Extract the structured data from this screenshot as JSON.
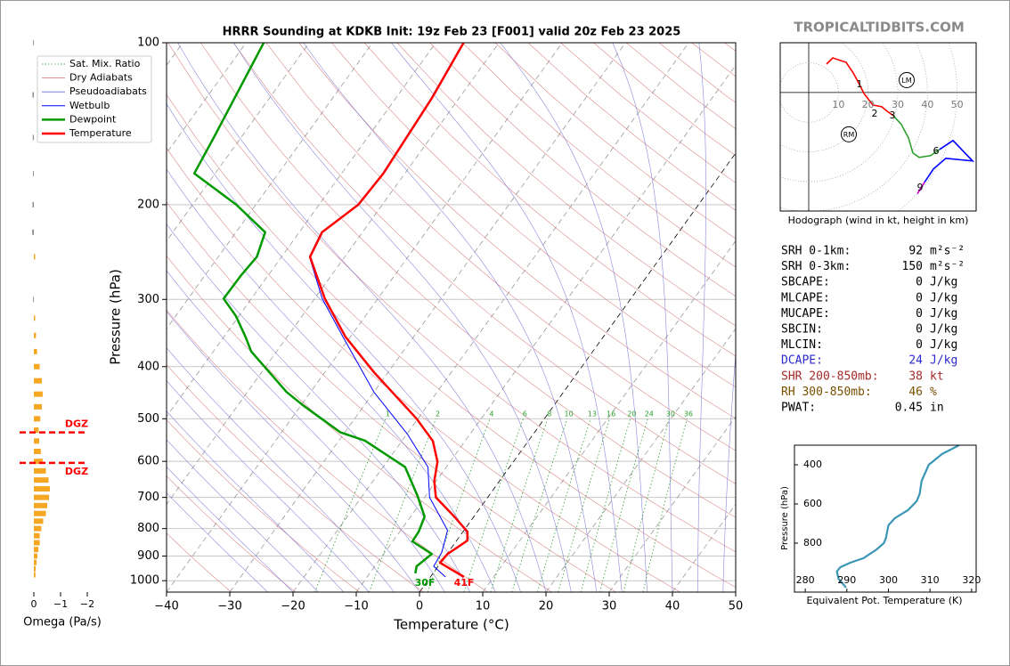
{
  "watermark": "TROPICALTIDBITS.COM",
  "chart_data": [
    {
      "type": "skewt",
      "title": "HRRR Sounding at KDKB Init: 19z Feb 23 [F001] valid 20z Feb 23 2025",
      "xlabel": "Temperature (°C)",
      "ylabel": "Pressure (hPa)",
      "xlim": [
        -40,
        50
      ],
      "ylim": [
        1050,
        100
      ],
      "log_y": true,
      "grid": true,
      "legend": "upper left",
      "xticks": [
        {
          "value": -40,
          "label": "−40"
        },
        {
          "value": -30,
          "label": "−30"
        },
        {
          "value": -20,
          "label": "−20"
        },
        {
          "value": -10,
          "label": "−10"
        },
        0,
        10,
        20,
        30,
        40,
        50
      ],
      "yticks": [
        100,
        200,
        300,
        400,
        500,
        600,
        700,
        800,
        900,
        1000
      ],
      "reference_lines": [
        {
          "name": "Sat. Mix. Ratio",
          "color": "#2ca02c",
          "values": [
            1,
            2,
            4,
            6,
            8,
            10,
            13,
            16,
            20,
            24,
            30,
            36
          ]
        },
        {
          "name": "Dry Adiabats",
          "color": "#d46a6a"
        },
        {
          "name": "Pseudoadiabats",
          "color": "#6a6ad4"
        }
      ],
      "series": [
        {
          "name": "Wetbulb",
          "color": "#0000ff",
          "pressure": [
            984,
            940,
            886,
            806,
            700,
            615,
            535,
            446,
            352,
            299,
            250,
            225,
            200,
            175,
            127,
            100
          ],
          "values": [
            2.4,
            -0.7,
            -1.0,
            -2.6,
            -9.2,
            -12.9,
            -19.8,
            -30,
            -41.2,
            -48.8,
            -55.6,
            -56.5,
            -53.9,
            -53.5,
            -54.4,
            -55.7
          ]
        },
        {
          "name": "Dewpoint",
          "color": "#009900",
          "pressure": [
            969,
            940,
            892,
            845,
            811,
            760,
            695,
            615,
            549,
            530,
            472,
            446,
            375,
            352,
            322,
            299,
            271,
            250,
            225,
            200,
            175,
            150,
            100
          ],
          "values": [
            -2.8,
            -3.4,
            -2.4,
            -6.9,
            -7.0,
            -7.8,
            -11.3,
            -16.5,
            -25.9,
            -30.7,
            -39.7,
            -43.8,
            -54,
            -56.6,
            -60.5,
            -64.4,
            -64.3,
            -63.9,
            -65.4,
            -73.1,
            -83.3,
            -84.3,
            -87.2
          ]
        },
        {
          "name": "Temperature",
          "color": "#ff0000",
          "pressure": [
            984,
            926,
            892,
            842,
            811,
            760,
            700,
            653,
            601,
            550,
            500,
            410,
            352,
            299,
            250,
            225,
            200,
            175,
            127,
            100
          ],
          "values": [
            5.3,
            -0.1,
            0.1,
            1.7,
            0.7,
            -3.1,
            -8.2,
            -10.3,
            -12.0,
            -15.1,
            -20.2,
            -32.2,
            -40.8,
            -48.4,
            -55.5,
            -56.4,
            -53.8,
            -53.4,
            -54.3,
            -55.6
          ]
        }
      ],
      "annotations": [
        {
          "text": "30F",
          "color": "#009900"
        },
        {
          "text": "41F",
          "color": "#ff0000"
        }
      ]
    },
    {
      "type": "bar",
      "orientation": "horizontal",
      "xlabel": "Omega (Pa/s)",
      "xlim": [
        0.5,
        -2.5
      ],
      "ylim": [
        1050,
        100
      ],
      "log_y": true,
      "xticks": [
        0,
        {
          "value": -1,
          "label": "−1"
        },
        {
          "value": -2,
          "label": "−2"
        }
      ],
      "colors": {
        "positive": "#8c8c8c",
        "negative": "#f5a623"
      },
      "pressure": [
        100,
        125,
        150,
        175,
        200,
        225,
        250,
        300,
        325,
        350,
        375,
        400,
        425,
        450,
        475,
        500,
        525,
        550,
        575,
        600,
        625,
        650,
        675,
        700,
        725,
        750,
        775,
        800,
        825,
        850,
        875,
        900,
        925,
        950,
        975
      ],
      "values": [
        0.03,
        0.05,
        0.04,
        0.03,
        0.05,
        0.06,
        -0.05,
        0.03,
        -0.05,
        -0.08,
        -0.12,
        -0.22,
        -0.3,
        -0.33,
        -0.3,
        -0.24,
        -0.18,
        -0.2,
        -0.26,
        -0.33,
        -0.45,
        -0.55,
        -0.6,
        -0.57,
        -0.5,
        -0.45,
        -0.35,
        -0.28,
        -0.22,
        -0.22,
        -0.17,
        -0.13,
        -0.1,
        -0.07,
        -0.06
      ],
      "dgz": {
        "color": "#ff0000",
        "pressure": [
          530,
          604
        ],
        "labels": [
          "DGZ",
          "DGZ"
        ]
      }
    },
    {
      "type": "hodograph",
      "title": "Hodograph (wind in kt, height in km)",
      "xlim": [
        -9.6,
        56.4
      ],
      "ylim": [
        -40,
        16.8
      ],
      "rings": [
        10,
        20,
        30,
        40,
        50
      ],
      "segments": [
        {
          "color": "#ff0000",
          "u": [
            6,
            8.1,
            12.6,
            15,
            17.1,
            18.6,
            21.6,
            24.6,
            26.4,
            28.5
          ],
          "v": [
            9.6,
            11.7,
            10.2,
            6.6,
            2.7,
            -0.3,
            -4.2,
            -4.8,
            -6.3,
            -7.8
          ]
        },
        {
          "color": "#2ca02c",
          "u": [
            28.5,
            31.2,
            33.6,
            35.1,
            37.2,
            41.1,
            44.1
          ],
          "v": [
            -7.8,
            -10.8,
            -15.3,
            -20.4,
            -21.9,
            -21.3,
            -19.2
          ]
        },
        {
          "color": "#0000ff",
          "u": [
            44.1,
            48.6,
            55.2,
            46.2,
            42,
            39
          ],
          "v": [
            -19.2,
            -16.2,
            -23.1,
            -22.2,
            -25.8,
            -30.3
          ]
        },
        {
          "color": "#cc00cc",
          "u": [
            39,
            36.6
          ],
          "v": [
            -30.3,
            -34.2
          ]
        }
      ],
      "height_labels": [
        "1",
        "2",
        "3",
        "6",
        "9"
      ],
      "storm_motion": [
        {
          "label": "LM",
          "u": 33,
          "v": 4.2
        },
        {
          "label": "RM",
          "u": 13.5,
          "v": -14.1
        }
      ]
    },
    {
      "type": "line",
      "xlabel": "Equivalent Pot. Temperature (K)",
      "ylabel": "Pressure (hPa)",
      "xlim": [
        277.4,
        321.1
      ],
      "ylim": [
        1050,
        300
      ],
      "xticks": [
        280,
        290,
        300,
        310,
        320
      ],
      "yticks": [
        400,
        600,
        800
      ],
      "color": "#3a96b5",
      "pressure": [
        300,
        345,
        400,
        482,
        550,
        586,
        632,
        673,
        709,
        773,
        800,
        832,
        877,
        900,
        923,
        945,
        982,
        1027
      ],
      "values": [
        317,
        312.9,
        309.7,
        308,
        307.5,
        306.8,
        304.7,
        301.5,
        300,
        299.4,
        298.9,
        297.2,
        294,
        290.8,
        288.4,
        287.6,
        288,
        289.8
      ]
    }
  ],
  "stats": [
    {
      "label": "SRH 0-1km:",
      "value": 92,
      "unit": "m²s⁻²",
      "color": "#000000"
    },
    {
      "label": "SRH 0-3km:",
      "value": 150,
      "unit": "m²s⁻²",
      "color": "#000000"
    },
    {
      "label": "SBCAPE:",
      "value": 0,
      "unit": "J/kg",
      "color": "#000000"
    },
    {
      "label": "MLCAPE:",
      "value": 0,
      "unit": "J/kg",
      "color": "#000000"
    },
    {
      "label": "MUCAPE:",
      "value": 0,
      "unit": "J/kg",
      "color": "#000000"
    },
    {
      "label": "SBCIN:",
      "value": 0,
      "unit": "J/kg",
      "color": "#000000"
    },
    {
      "label": "MLCIN:",
      "value": 0,
      "unit": "J/kg",
      "color": "#000000"
    },
    {
      "label": "DCAPE:",
      "value": 24,
      "unit": "J/kg",
      "color": "#2a2ad0"
    },
    {
      "label": "SHR 200-850mb:",
      "value": 38,
      "unit": "kt",
      "color": "#a52a2a"
    },
    {
      "label": "RH 300-850mb:",
      "value": 46,
      "unit": "%",
      "color": "#7a5000"
    },
    {
      "label": "PWAT:",
      "value": 0.45,
      "unit": "in",
      "color": "#000000"
    }
  ]
}
